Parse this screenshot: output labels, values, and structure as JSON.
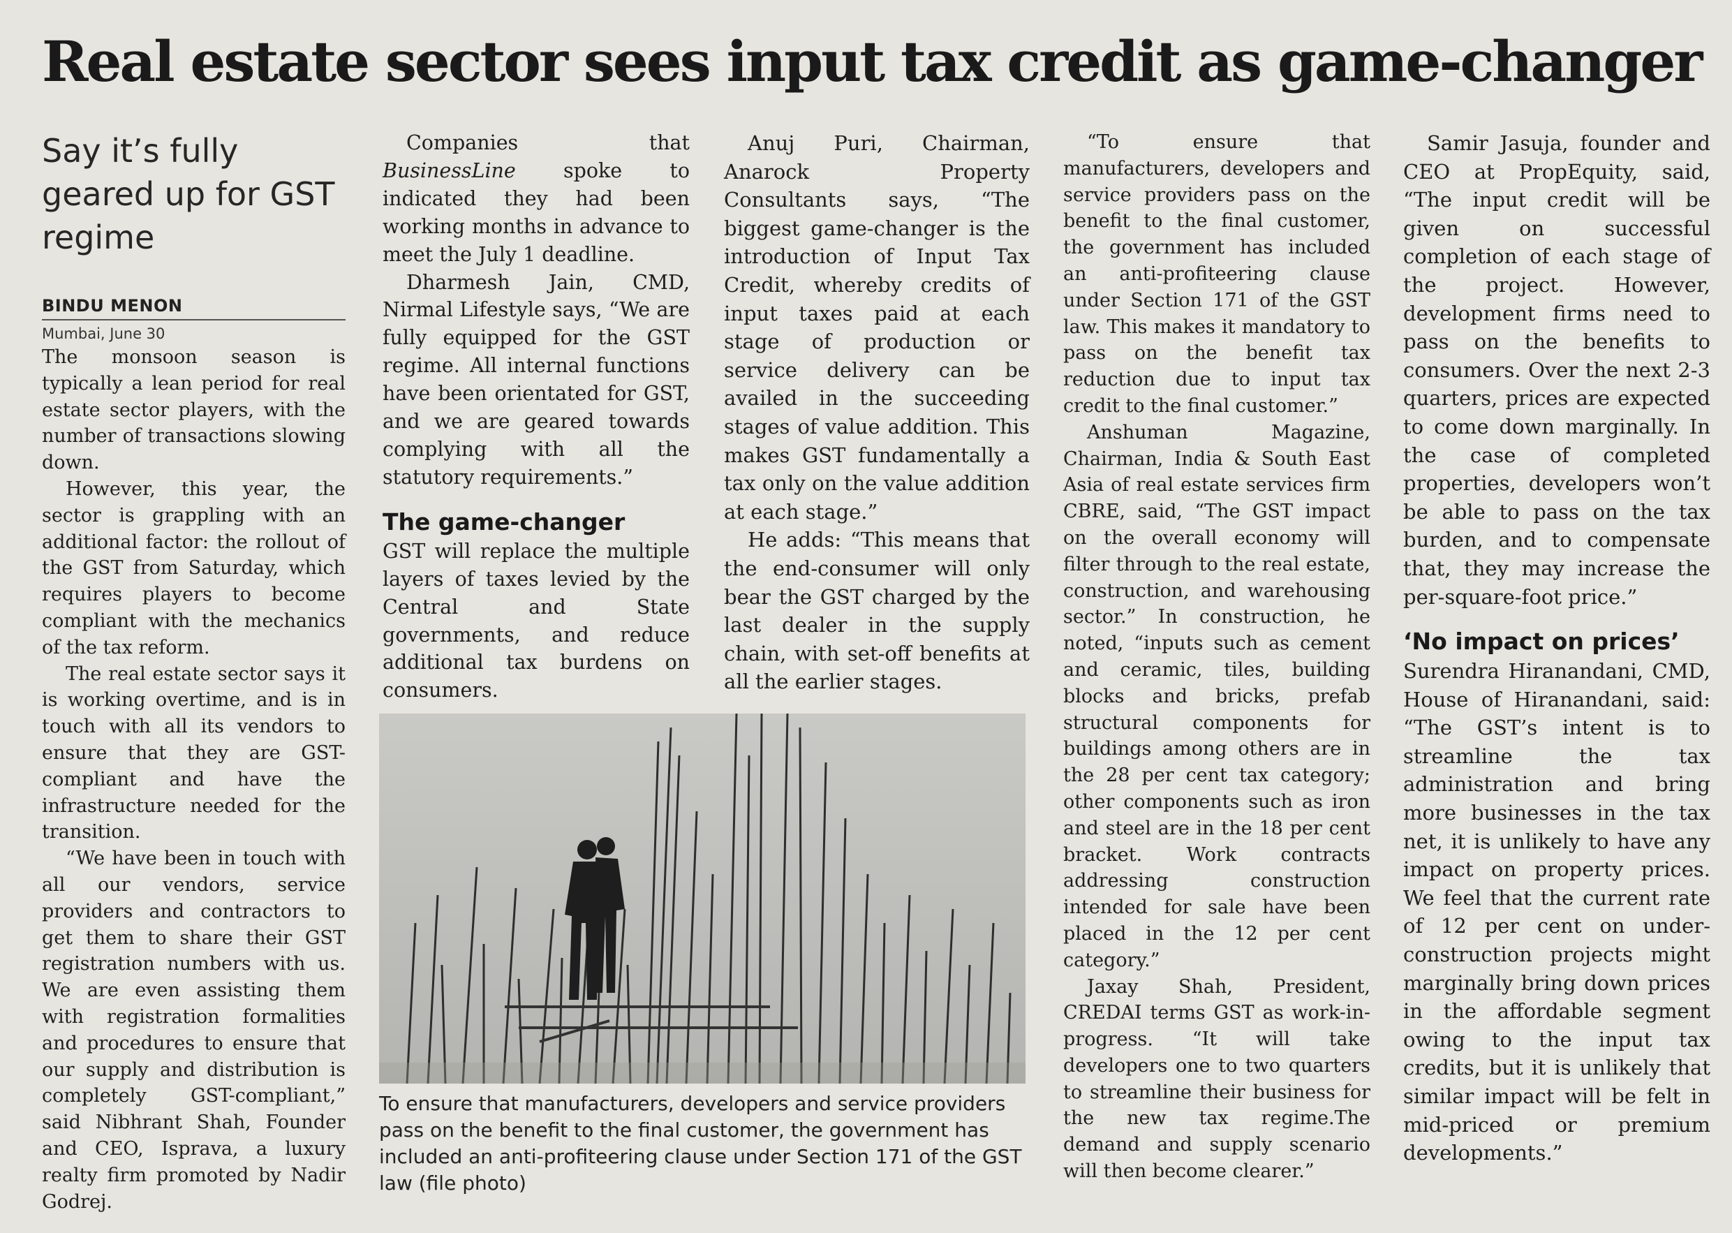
{
  "headline": "Real estate sector sees input tax credit as game-changer",
  "deck": "Say it’s fully geared up for GST regime",
  "byline": "BINDU MENON",
  "dateline": "Mumbai, June 30",
  "paragraphs": {
    "p1": "The monsoon season is typically a lean period for real estate sector players, with the number of transactions slowing down.",
    "p2": "However, this year, the sector is grappling with an additional factor: the rollout of the GST from Saturday, which requires players to become compliant with the mechanics of the tax reform.",
    "p3": "The real estate sector says it is working overtime, and is in touch with all its vendors to ensure that they are GST-compliant and have the infrastructure needed for the transition.",
    "p4": "“We have been in touch with all our vendors, service providers and contractors to get them to share their GST registration numbers with us. We are even assisting them with registration formalities and procedures to ensure that our supply and distribution is completely GST-compliant,” said Nibhrant Shah, Founder and CEO, Isprava, a luxury realty firm promoted by Nadir Godrej.",
    "p5_a": "Companies that ",
    "p5_em": "BusinessLine",
    "p5_b": " spoke to indicated they had been working months in advance to meet the July 1 deadline.",
    "p6": "Dharmesh Jain, CMD, Nirmal Lifestyle says, “We are fully equipped for the GST regime. All internal functions have been orientated for GST, and we are geared towards complying with all the statutory requirements.”",
    "p7": "GST will replace the multiple layers of taxes levied by the Central and State governments, and reduce additional tax burdens on consumers.",
    "p8": "Anuj Puri, Chairman, Anarock Property Consultants says, “The biggest game-changer is the introduction of Input Tax Credit, whereby credits of input taxes paid at each stage of production or service delivery can be availed in the succeeding stages of value addition. This makes GST fundamentally a tax only on the value addition at each stage.”",
    "p9": "He adds: “This means that the end-consumer will only bear the GST charged by the last dealer in the supply chain, with set-off benefits at all the earlier stages.",
    "p10": "“To ensure that manufacturers, developers and service providers pass on the benefit to the final customer, the government has included an anti-profiteering clause under Section 171 of the GST law. This makes it mandatory to pass on the benefit tax reduction due to input tax credit to the final customer.”",
    "p11": "Anshuman Magazine, Chairman, India & South East Asia of real estate services firm CBRE, said, “The GST impact on the overall economy will filter through to the real estate, construction, and warehousing sector.” In construction, he noted, “inputs such as cement and ceramic, tiles, building blocks and bricks, prefab structural components for buildings among others are in the 28 per cent tax category; other components such as iron and steel are in the 18 per cent bracket. Work contracts addressing construction intended for sale have been placed in the 12 per cent category.”",
    "p12": "Jaxay Shah, President, CREDAI terms GST as work-in-progress. “It will take developers one to two quarters to streamline their business for the new tax regime.The demand and supply scenario will then become clearer.”",
    "p13": "Samir Jasuja, founder and CEO at PropEquity, said, “The input credit will be given on successful completion of each stage of the project. However, development firms need to pass on the benefits to consumers. Over the next 2-3 quarters, prices are expected to come down marginally. In the case of completed properties, developers won’t be able to pass on the tax burden, and to compensate that, they may increase the per-square-foot price.”",
    "p14": "Surendra Hiranandani, CMD, House of Hiranandani, said: “The GST’s intent is to streamline the tax administration and bring more businesses in the tax net, it is unlikely to have any impact on property prices. We feel that the current rate of 12 per cent on under-construction projects might marginally bring down prices in the affordable segment owing to the input tax credits, but it is unlikely that similar impact will be felt in mid-priced or premium developments.”"
  },
  "subheads": {
    "game_changer": "The game-changer",
    "no_impact": "‘No impact on prices’"
  },
  "photo_caption": "To ensure that manufacturers, developers and service providers pass on the benefit to the final customer, the government has included an anti-profiteering clause under Section 171 of the GST law (file photo)",
  "colors": {
    "paper": "#e7e5df",
    "ink": "#1f1f1f",
    "photo_sky": "#bcbcb8"
  }
}
